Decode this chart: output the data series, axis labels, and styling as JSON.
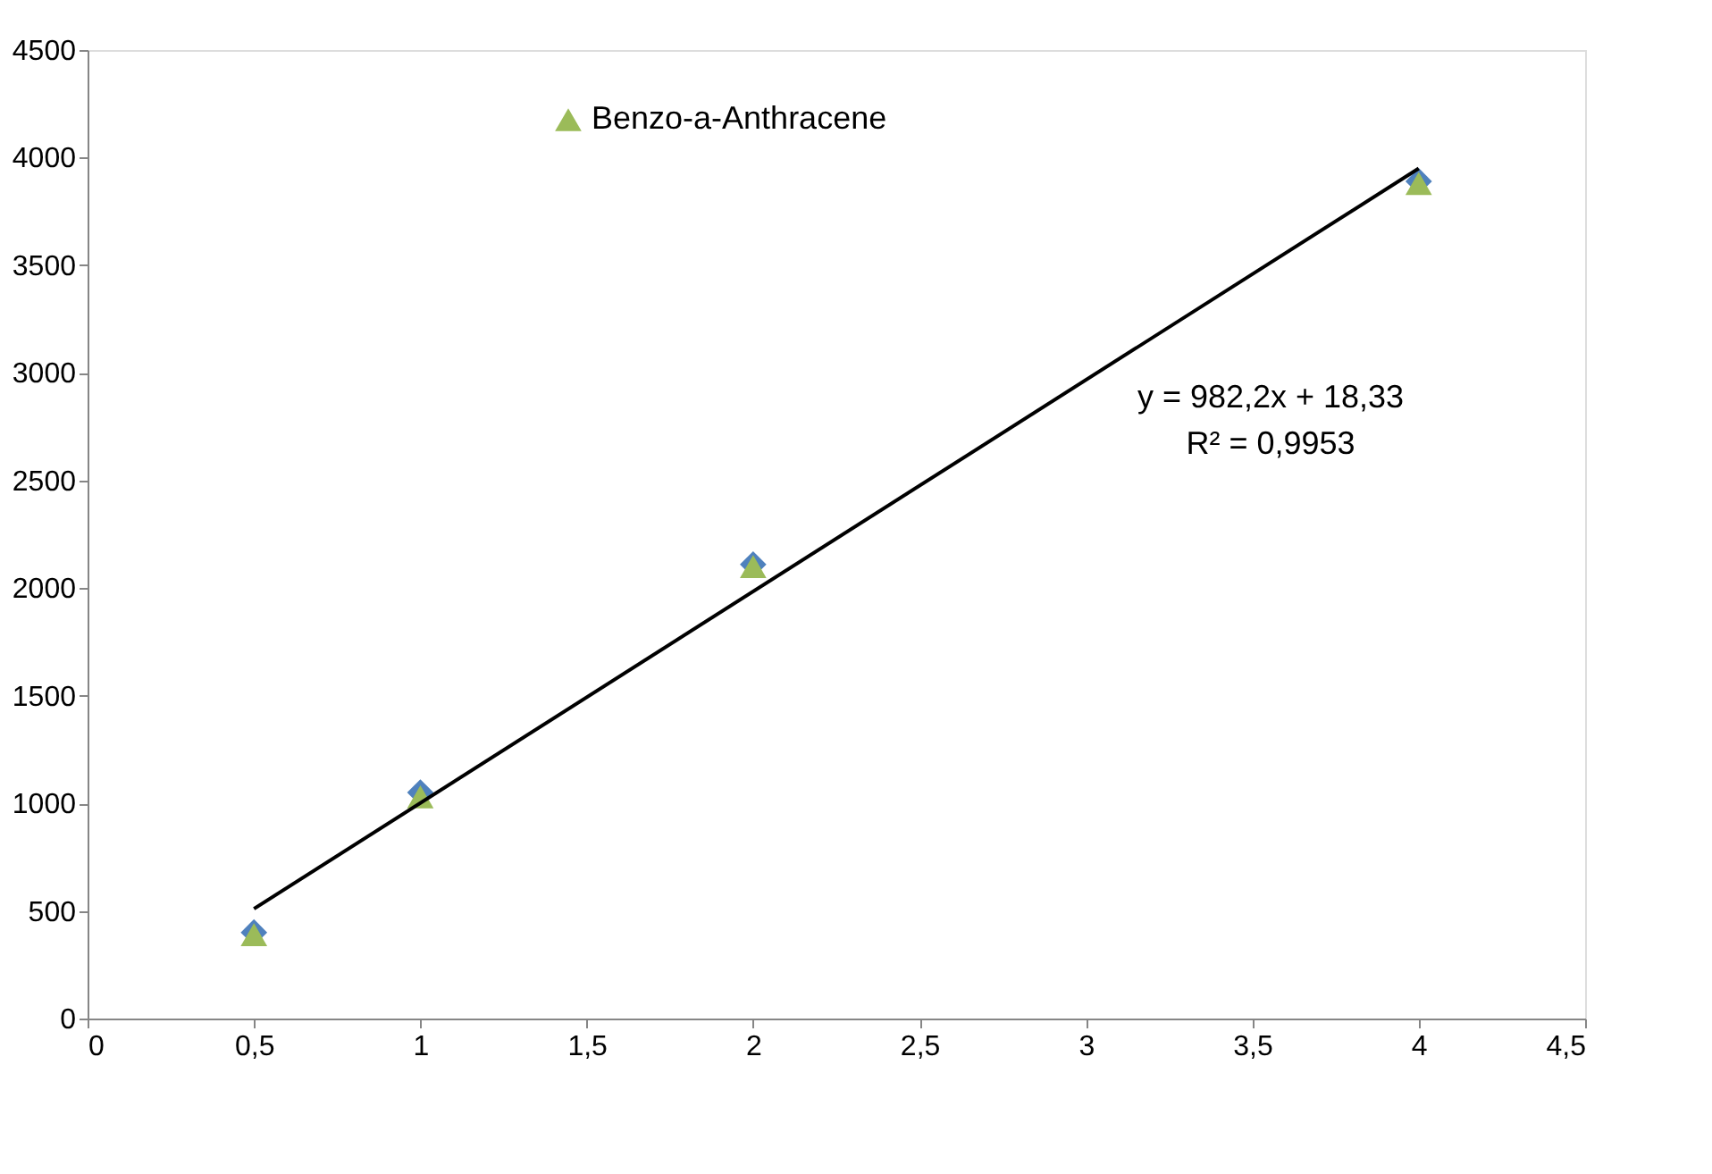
{
  "chart_data": {
    "type": "scatter",
    "xlim": [
      0,
      4.5
    ],
    "ylim": [
      0,
      4500
    ],
    "xticks": [
      0,
      {
        "value": 0.5,
        "label": "0,5"
      },
      1,
      {
        "value": 1.5,
        "label": "1,5"
      },
      2,
      {
        "value": 2.5,
        "label": "2,5"
      },
      3,
      {
        "value": 3.5,
        "label": "3,5"
      },
      4,
      {
        "value": 4.5,
        "label": "4,5"
      }
    ],
    "yticks": [
      0,
      500,
      1000,
      1500,
      2000,
      2500,
      3000,
      3500,
      4000,
      4500
    ],
    "grid": false,
    "legend": "top left",
    "series": [
      {
        "marker": "diamond",
        "color": "#4f81bd",
        "x": [
          0.5,
          1,
          2,
          4
        ],
        "values": [
          400,
          1050,
          2110,
          3890
        ]
      },
      {
        "marker": "triangle",
        "name": "Benzo-a-Anthracene",
        "color": "#9bbb59",
        "x": [
          0.5,
          1,
          2,
          4
        ],
        "values": [
          390,
          1030,
          2100,
          3880
        ]
      },
      {
        "type": "line",
        "color": "#000000",
        "x": [
          0.5,
          4
        ],
        "values": [
          510,
          3950
        ]
      }
    ],
    "annotations": [
      "y = 982,2x + 18,33",
      "R² = 0,9953"
    ]
  }
}
